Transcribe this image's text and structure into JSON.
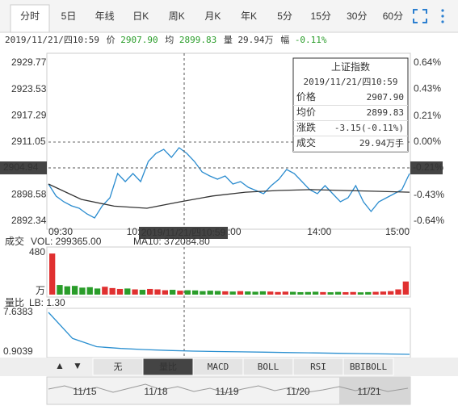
{
  "tabs": [
    "分时",
    "5日",
    "年线",
    "日K",
    "周K",
    "月K",
    "年K",
    "5分",
    "15分",
    "30分",
    "60分"
  ],
  "selected_tab": 0,
  "info": {
    "time": "2019/11/21/四10:59",
    "price_label": "价",
    "price": "2907.90",
    "avg_label": "均",
    "avg": "2899.83",
    "vol_label": "量",
    "vol": "29.94万",
    "amp_label": "幅",
    "amp": "-0.11%"
  },
  "chart_data": {
    "type": "line",
    "ylim": [
      2892.34,
      2929.77
    ],
    "yticks": [
      2929.77,
      2923.53,
      2917.29,
      2911.05,
      2898.58,
      2892.34
    ],
    "y2lim": [
      -0.64,
      0.64
    ],
    "y2ticks": [
      {
        "value": 0.64,
        "label": "0.64%"
      },
      {
        "value": 0.43,
        "label": "0.43%"
      },
      {
        "value": 0.21,
        "label": "0.21%"
      },
      {
        "value": 0,
        "label": "0.00%"
      },
      {
        "value": -0.43,
        "label": "-0.43%"
      },
      {
        "value": -0.64,
        "label": "-0.64%"
      }
    ],
    "xticks": [
      "09:30",
      "10:30",
      "13:00",
      "14:00",
      "15:00"
    ],
    "series": [
      {
        "color": "#2b8ccf",
        "values": [
          2901.13,
          2898.26,
          2896.92,
          2895.97,
          2895.39,
          2894.06,
          2893.1,
          2895.97,
          2897.88,
          2903.61,
          2901.7,
          2903.61,
          2901.7,
          2906.47,
          2908.38,
          2909.34,
          2907.43,
          2909.72,
          2908.38,
          2906.47,
          2903.99,
          2903.03,
          2902.27,
          2903.03,
          2901.13,
          2901.7,
          2900.36,
          2899.6,
          2898.84,
          2900.75,
          2902.27,
          2904.57,
          2903.61,
          2901.7,
          2899.79,
          2898.84,
          2900.75,
          2898.84,
          2896.92,
          2897.88,
          2900.75,
          2896.92,
          2894.63,
          2896.92,
          2897.88,
          2898.84,
          2899.79,
          2903.61
        ]
      },
      {
        "color": "#333333",
        "values": [
          2901.13,
          2897.5,
          2895.9,
          2895.4,
          2896.9,
          2898.3,
          2899.2,
          2899.6,
          2899.8,
          2899.6,
          2899.4,
          2899.2
        ]
      }
    ],
    "crosshair": {
      "price": 2904.94,
      "pct": "-0.21%"
    }
  },
  "tooltip": {
    "title": "上证指数",
    "price_label": "价格",
    "avg_label": "均价",
    "change_label": "涨跌",
    "change": "-3.15(-0.11%)",
    "vol_label": "成交",
    "vol": "29.94万手"
  },
  "volume": {
    "title": "成交",
    "vol_text": "VOL: 299365.00",
    "ma_text": "MA10: 372084.80",
    "ylim": [
      0,
      480
    ],
    "yticks": [
      480
    ],
    "unit": "万",
    "values": [
      470,
      110,
      95,
      100,
      80,
      85,
      70,
      90,
      75,
      65,
      70,
      60,
      55,
      65,
      60,
      50,
      55,
      45,
      50,
      48,
      40,
      45,
      42,
      38,
      35,
      40,
      36,
      33,
      38,
      35,
      30,
      34,
      32,
      28,
      30,
      33,
      29,
      27,
      31,
      28,
      30,
      26,
      29,
      32,
      35,
      40,
      60,
      150
    ]
  },
  "lb": {
    "title": "量比",
    "lb_text": "LB: 1.30",
    "ylim": [
      0.22,
      7.6383
    ],
    "yticks": [
      7.6383,
      0.9039
    ],
    "values": [
      7.6383,
      3.2,
      1.8,
      1.5,
      1.3,
      1.15,
      1.05,
      0.98,
      0.92,
      0.86,
      0.8,
      0.74,
      0.68,
      0.62,
      0.56,
      0.5
    ]
  },
  "buttons": [
    "无",
    "量比",
    "MACD",
    "BOLL",
    "RSI",
    "BBIBOLL"
  ],
  "selected_button": 1,
  "dates": [
    "11/15",
    "11/18",
    "11/19",
    "11/20",
    "11/21"
  ]
}
